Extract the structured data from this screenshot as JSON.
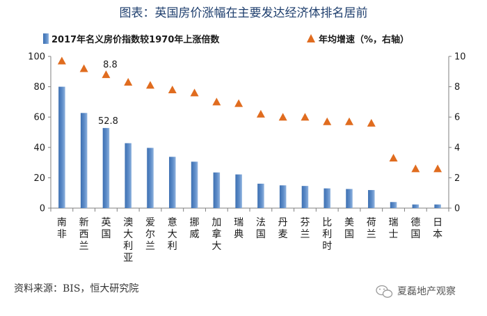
{
  "chart_data": {
    "type": "bar",
    "title": "图表：英国房价涨幅在主要发达经济体排名居前",
    "categories": [
      "南非",
      "新西兰",
      "英国",
      "澳大利亚",
      "爱尔兰",
      "意大利",
      "挪威",
      "加拿大",
      "瑞典",
      "法国",
      "丹麦",
      "芬兰",
      "比利时",
      "美国",
      "荷兰",
      "瑞士",
      "德国",
      "日本"
    ],
    "series": [
      {
        "name": "2017年名义房价指数较1970年上涨倍数",
        "type": "bar",
        "axis": "left",
        "values": [
          80.0,
          62.7,
          52.8,
          42.8,
          39.7,
          33.8,
          30.6,
          23.5,
          22.2,
          16.1,
          15.0,
          14.6,
          13.0,
          12.6,
          11.9,
          4.0,
          2.4,
          2.4
        ]
      },
      {
        "name": "年均增速（%，右轴）",
        "type": "scatter",
        "axis": "right",
        "values": [
          9.7,
          9.2,
          8.8,
          8.3,
          8.1,
          7.8,
          7.6,
          7.0,
          6.9,
          6.2,
          6.0,
          6.0,
          5.7,
          5.7,
          5.6,
          3.3,
          2.6,
          2.6
        ]
      }
    ],
    "data_labels": [
      {
        "category": "英国",
        "series": "bar",
        "text": "52.8"
      },
      {
        "category": "英国",
        "series": "scatter",
        "text": "8.8"
      }
    ],
    "ylim_left": [
      0,
      100
    ],
    "yticks_left": [
      "0",
      "20",
      "40",
      "60",
      "80",
      "100"
    ],
    "ylim_right": [
      0,
      10
    ],
    "yticks_right": [
      "0",
      "2",
      "4",
      "6",
      "8",
      "10"
    ],
    "source": "资料来源：BIS，恒大研究院",
    "watermark": "夏磊地产观察",
    "colors": {
      "bar": "#3d70b2",
      "bar_light": "#8fb2de",
      "marker": "#e06c1f",
      "title": "#1f3f6e"
    }
  }
}
